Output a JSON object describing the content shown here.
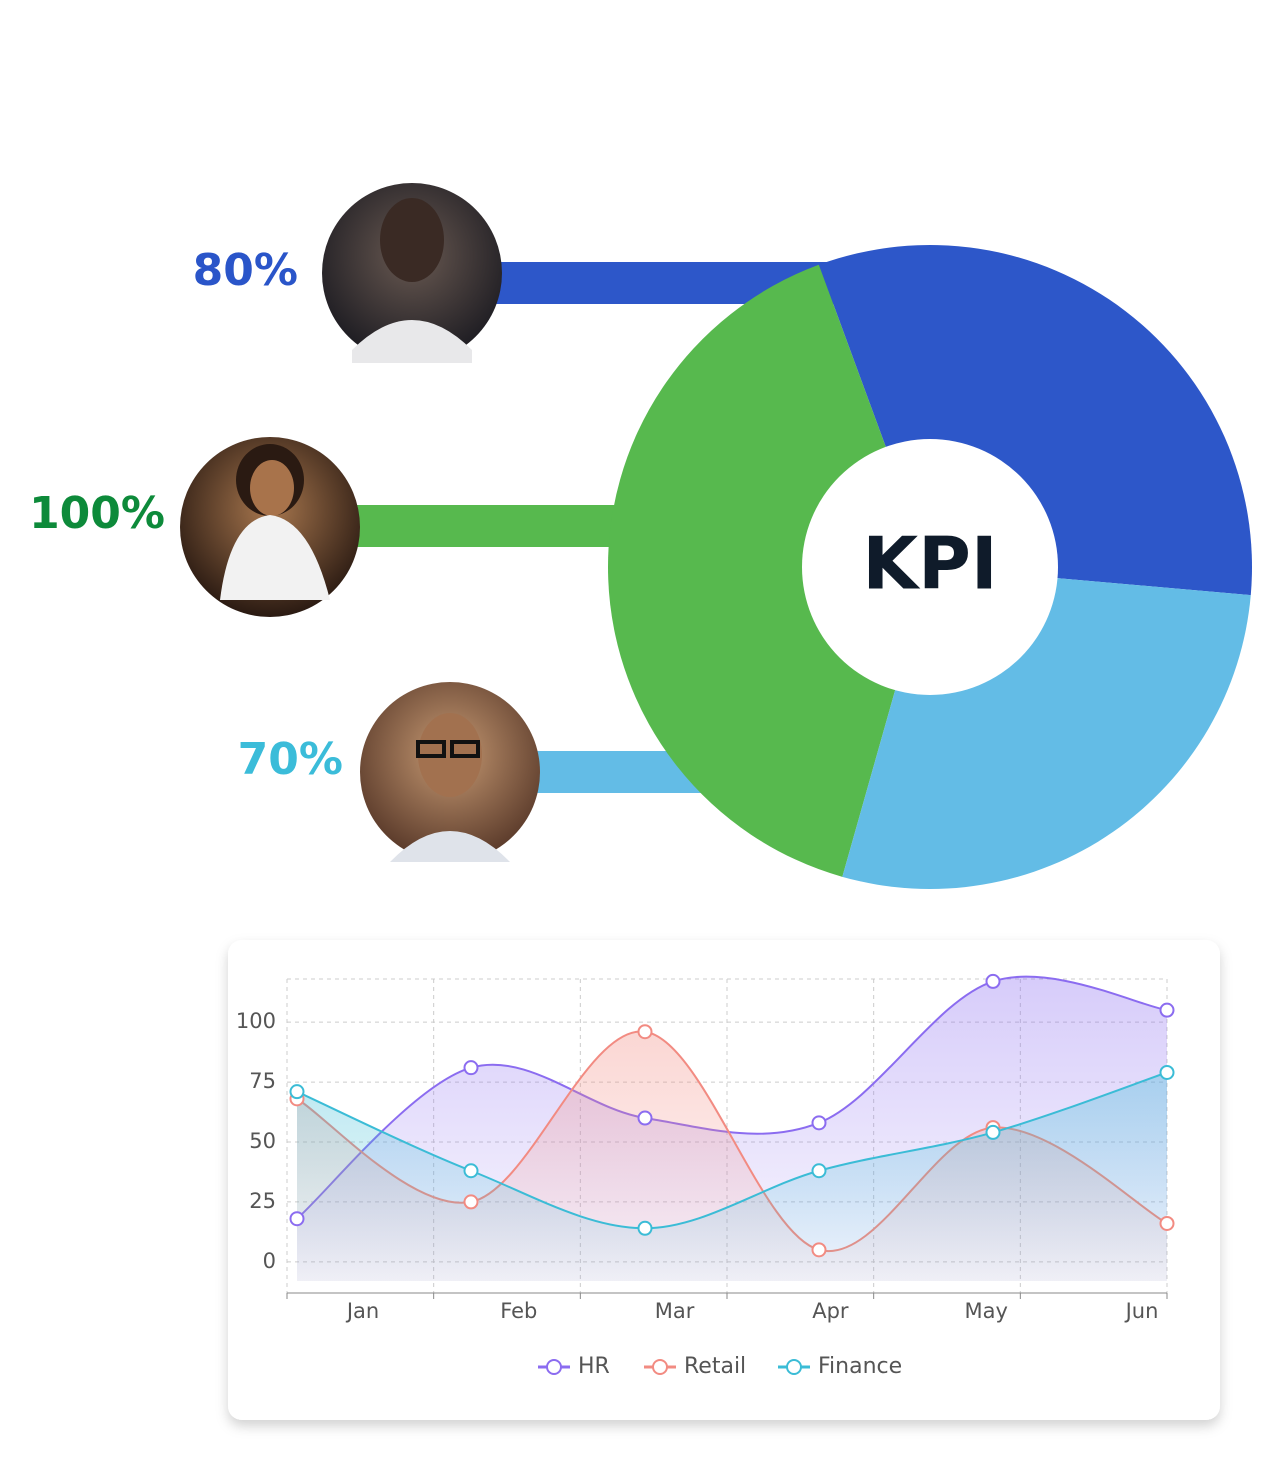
{
  "chart_data": [
    {
      "type": "donut",
      "center_label": "KPI",
      "values": [
        80,
        100,
        70
      ],
      "value_labels": [
        "80%",
        "100%",
        "70%"
      ],
      "colors": [
        "#2d57c9",
        "#57b94e",
        "#63bce6"
      ],
      "label_colors": [
        "#2a55c9",
        "#0d8a3a",
        "#3bbcd9"
      ]
    },
    {
      "type": "line",
      "area": true,
      "smooth": true,
      "grid": true,
      "legend": "bottom",
      "categories": [
        "Jan",
        "Feb",
        "Mar",
        "Apr",
        "May",
        "Jun"
      ],
      "ylim": [
        -13,
        118
      ],
      "yticks": [
        0,
        25,
        50,
        75,
        100
      ],
      "series": [
        {
          "name": "HR",
          "color": "#8b6cf0",
          "values": [
            18,
            81,
            60,
            58,
            117,
            105
          ]
        },
        {
          "name": "Retail",
          "color": "#f28b82",
          "values": [
            68,
            25,
            96,
            5,
            56,
            16
          ]
        },
        {
          "name": "Finance",
          "color": "#3bbcd6",
          "values": [
            71,
            38,
            14,
            38,
            54,
            79
          ]
        }
      ]
    }
  ]
}
